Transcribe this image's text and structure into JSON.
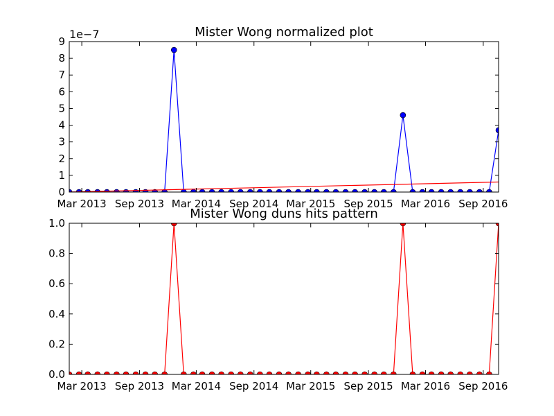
{
  "chart_data": [
    {
      "type": "line",
      "title": "Mister Wong normalized plot",
      "xlabel": "",
      "ylabel": "",
      "offset_text": "1e−7",
      "xlim": [
        "2013-01-20",
        "2016-10-20"
      ],
      "ylim": [
        0,
        9
      ],
      "yticks": [
        "0",
        "1",
        "2",
        "3",
        "4",
        "5",
        "6",
        "7",
        "8",
        "9"
      ],
      "xticks": [
        {
          "date": "2013-03-01",
          "label": "Mar 2013"
        },
        {
          "date": "2013-09-01",
          "label": "Sep 2013"
        },
        {
          "date": "2014-03-01",
          "label": "Mar 2014"
        },
        {
          "date": "2014-09-01",
          "label": "Sep 2014"
        },
        {
          "date": "2015-03-01",
          "label": "Mar 2015"
        },
        {
          "date": "2015-09-01",
          "label": "Sep 2015"
        },
        {
          "date": "2016-03-01",
          "label": "Mar 2016"
        },
        {
          "date": "2016-09-01",
          "label": "Sep 2016"
        }
      ],
      "grid": false,
      "series": [
        {
          "color": "#0000ff",
          "marker": "circle",
          "x": [
            "2013-01-20",
            "2013-02-20",
            "2013-03-20",
            "2013-04-20",
            "2013-05-20",
            "2013-06-20",
            "2013-07-20",
            "2013-08-20",
            "2013-09-20",
            "2013-10-20",
            "2013-11-20",
            "2013-12-20",
            "2014-01-20",
            "2014-02-20",
            "2014-03-20",
            "2014-04-20",
            "2014-05-20",
            "2014-06-20",
            "2014-07-20",
            "2014-08-20",
            "2014-09-20",
            "2014-10-20",
            "2014-11-20",
            "2014-12-20",
            "2015-01-20",
            "2015-02-20",
            "2015-03-20",
            "2015-04-20",
            "2015-05-20",
            "2015-06-20",
            "2015-07-20",
            "2015-08-20",
            "2015-09-20",
            "2015-10-20",
            "2015-11-20",
            "2015-12-20",
            "2016-01-20",
            "2016-02-20",
            "2016-03-20",
            "2016-04-20",
            "2016-05-20",
            "2016-06-20",
            "2016-07-20",
            "2016-08-20",
            "2016-09-20",
            "2016-10-20"
          ],
          "y": [
            0,
            0,
            0,
            0,
            0,
            0,
            0,
            0,
            0,
            0,
            0,
            8.5,
            0,
            0,
            0,
            0,
            0,
            0,
            0,
            0,
            0,
            0,
            0,
            0,
            0,
            0,
            0,
            0,
            0,
            0,
            0,
            0,
            0,
            0,
            0,
            4.6,
            0,
            0,
            0,
            0,
            0,
            0,
            0,
            0,
            0,
            3.7
          ]
        },
        {
          "color": "#ff0000",
          "marker": "none",
          "x": [
            "2013-01-20",
            "2016-10-20"
          ],
          "y": [
            0,
            0.6
          ]
        }
      ]
    },
    {
      "type": "line",
      "title": "Mister Wong duns hits pattern",
      "xlabel": "",
      "ylabel": "",
      "xlim": [
        "2013-01-20",
        "2016-10-20"
      ],
      "ylim": [
        0,
        1
      ],
      "yticks": [
        "0.0",
        "0.2",
        "0.4",
        "0.6",
        "0.8",
        "1.0"
      ],
      "xticks": [
        {
          "date": "2013-03-01",
          "label": "Mar 2013"
        },
        {
          "date": "2013-09-01",
          "label": "Sep 2013"
        },
        {
          "date": "2014-03-01",
          "label": "Mar 2014"
        },
        {
          "date": "2014-09-01",
          "label": "Sep 2014"
        },
        {
          "date": "2015-03-01",
          "label": "Mar 2015"
        },
        {
          "date": "2015-09-01",
          "label": "Sep 2015"
        },
        {
          "date": "2016-03-01",
          "label": "Mar 2016"
        },
        {
          "date": "2016-09-01",
          "label": "Sep 2016"
        }
      ],
      "grid": false,
      "series": [
        {
          "color": "#ff0000",
          "marker": "circle",
          "x": [
            "2013-01-20",
            "2013-02-20",
            "2013-03-20",
            "2013-04-20",
            "2013-05-20",
            "2013-06-20",
            "2013-07-20",
            "2013-08-20",
            "2013-09-20",
            "2013-10-20",
            "2013-11-20",
            "2013-12-20",
            "2014-01-20",
            "2014-02-20",
            "2014-03-20",
            "2014-04-20",
            "2014-05-20",
            "2014-06-20",
            "2014-07-20",
            "2014-08-20",
            "2014-09-20",
            "2014-10-20",
            "2014-11-20",
            "2014-12-20",
            "2015-01-20",
            "2015-02-20",
            "2015-03-20",
            "2015-04-20",
            "2015-05-20",
            "2015-06-20",
            "2015-07-20",
            "2015-08-20",
            "2015-09-20",
            "2015-10-20",
            "2015-11-20",
            "2015-12-20",
            "2016-01-20",
            "2016-02-20",
            "2016-03-20",
            "2016-04-20",
            "2016-05-20",
            "2016-06-20",
            "2016-07-20",
            "2016-08-20",
            "2016-09-20",
            "2016-10-20"
          ],
          "y": [
            0,
            0,
            0,
            0,
            0,
            0,
            0,
            0,
            0,
            0,
            0,
            1,
            0,
            0,
            0,
            0,
            0,
            0,
            0,
            0,
            0,
            0,
            0,
            0,
            0,
            0,
            0,
            0,
            0,
            0,
            0,
            0,
            0,
            0,
            0,
            1,
            0,
            0,
            0,
            0,
            0,
            0,
            0,
            0,
            0,
            1
          ]
        }
      ]
    }
  ]
}
